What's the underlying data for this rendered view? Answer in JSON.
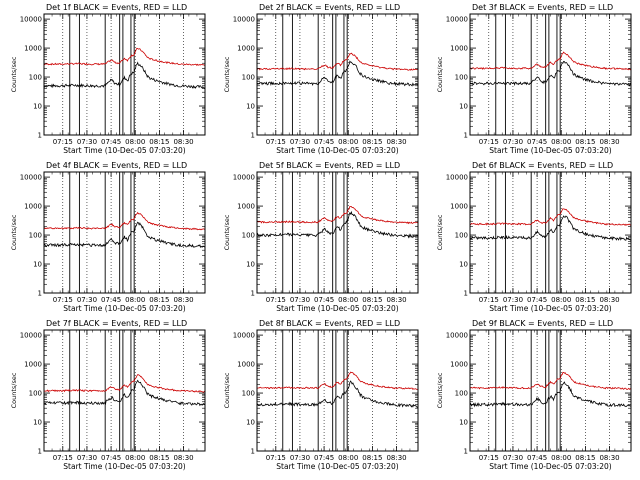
{
  "page": {
    "background": "#ffffff"
  },
  "chart_data": {
    "type": "line",
    "layout": "3x3 grid",
    "colors": {
      "events": "#000000",
      "lld": "#cc0000",
      "axes": "#000000"
    },
    "legend_text": "BLACK = Events, RED = LLD",
    "xlabel": "Start Time (10-Dec-05 07:03:20)",
    "ylabel": "Counts/sec",
    "yscale": "log",
    "ylim": [
      1,
      15000
    ],
    "ytick_values": [
      1,
      10,
      100,
      1000,
      10000
    ],
    "ytick_labels": [
      "1",
      "10",
      "100",
      "1000",
      "10000"
    ],
    "xlim_minutes": [
      0,
      100
    ],
    "xtick_minutes": [
      11.67,
      26.67,
      41.67,
      56.67,
      71.67,
      86.67
    ],
    "xtick_labels": [
      "07:15",
      "07:30",
      "07:45",
      "08:00",
      "08:15",
      "08:30"
    ],
    "dotted_vlines_minutes": [
      11.67,
      26.67,
      41.67,
      56.67,
      71.67,
      86.67
    ],
    "solid_vlines_minutes": [
      16,
      22,
      38,
      47,
      49,
      54,
      56
    ],
    "event_profile": {
      "time_minutes": [
        0,
        10,
        20,
        30,
        38,
        42,
        44,
        47,
        50,
        52,
        54,
        56,
        58,
        60,
        62,
        64,
        66,
        70,
        76,
        84,
        92,
        100
      ],
      "shape": [
        1.0,
        1.0,
        1.05,
        1.0,
        1.0,
        1.6,
        1.2,
        1.1,
        1.9,
        1.5,
        2.6,
        2.9,
        6.0,
        5.0,
        3.5,
        2.2,
        1.8,
        1.5,
        1.2,
        1.0,
        0.95,
        0.9
      ]
    },
    "panels": [
      {
        "title": "Det 1f BLACK = Events, RED = LLD",
        "detector": "Det 1f",
        "events_baseline": 50,
        "lld_baseline": 280
      },
      {
        "title": "Det 2f BLACK = Events, RED = LLD",
        "detector": "Det 2f",
        "events_baseline": 60,
        "lld_baseline": 190
      },
      {
        "title": "Det 3f BLACK = Events, RED = LLD",
        "detector": "Det 3f",
        "events_baseline": 60,
        "lld_baseline": 200
      },
      {
        "title": "Det 4f BLACK = Events, RED = LLD",
        "detector": "Det 4f",
        "events_baseline": 45,
        "lld_baseline": 170
      },
      {
        "title": "Det 5f BLACK = Events, RED = LLD",
        "detector": "Det 5f",
        "events_baseline": 100,
        "lld_baseline": 280
      },
      {
        "title": "Det 6f BLACK = Events, RED = LLD",
        "detector": "Det 6f",
        "events_baseline": 80,
        "lld_baseline": 240
      },
      {
        "title": "Det 7f BLACK = Events, RED = LLD",
        "detector": "Det 7f",
        "events_baseline": 45,
        "lld_baseline": 120
      },
      {
        "title": "Det 8f BLACK = Events, RED = LLD",
        "detector": "Det 8f",
        "events_baseline": 40,
        "lld_baseline": 150
      },
      {
        "title": "Det 9f BLACK = Events, RED = LLD",
        "detector": "Det 9f",
        "events_baseline": 40,
        "lld_baseline": 150
      }
    ]
  }
}
